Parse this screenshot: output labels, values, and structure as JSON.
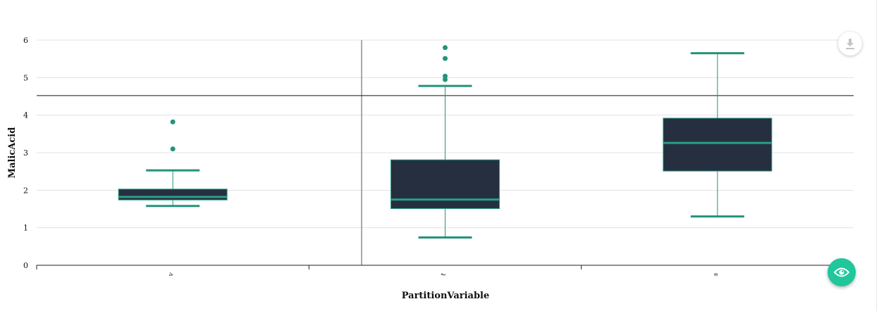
{
  "chart_data": {
    "type": "box",
    "xlabel": "PartitionVariable",
    "ylabel": "MalicAcid",
    "ylim": [
      0,
      6
    ],
    "yticks": [
      "0",
      "1",
      "2",
      "3",
      "4",
      "5",
      "6"
    ],
    "grid": true,
    "reference_line_y": 4.52,
    "categories": [
      "v",
      "t",
      "s"
    ],
    "boxes": [
      {
        "category": "v",
        "whisker_low": 1.58,
        "q1": 1.74,
        "median": 1.82,
        "q3": 2.03,
        "whisker_high": 2.53,
        "outliers": [
          3.1,
          3.82
        ]
      },
      {
        "category": "t",
        "whisker_low": 0.74,
        "q1": 1.51,
        "median": 1.75,
        "q3": 2.81,
        "whisker_high": 4.78,
        "outliers": [
          4.95,
          5.04,
          5.51,
          5.8
        ]
      },
      {
        "category": "s",
        "whisker_low": 1.3,
        "q1": 2.51,
        "median": 3.26,
        "q3": 3.92,
        "whisker_high": 5.65,
        "outliers": []
      }
    ],
    "colors": {
      "box_fill": "#262f40",
      "box_stroke": "#26a085",
      "whisker": "#23937a",
      "outlier": "#23937a"
    }
  },
  "buttons": {
    "download_icon": "download-icon",
    "view_icon": "eye-icon",
    "view_color": "#1fc79a"
  }
}
